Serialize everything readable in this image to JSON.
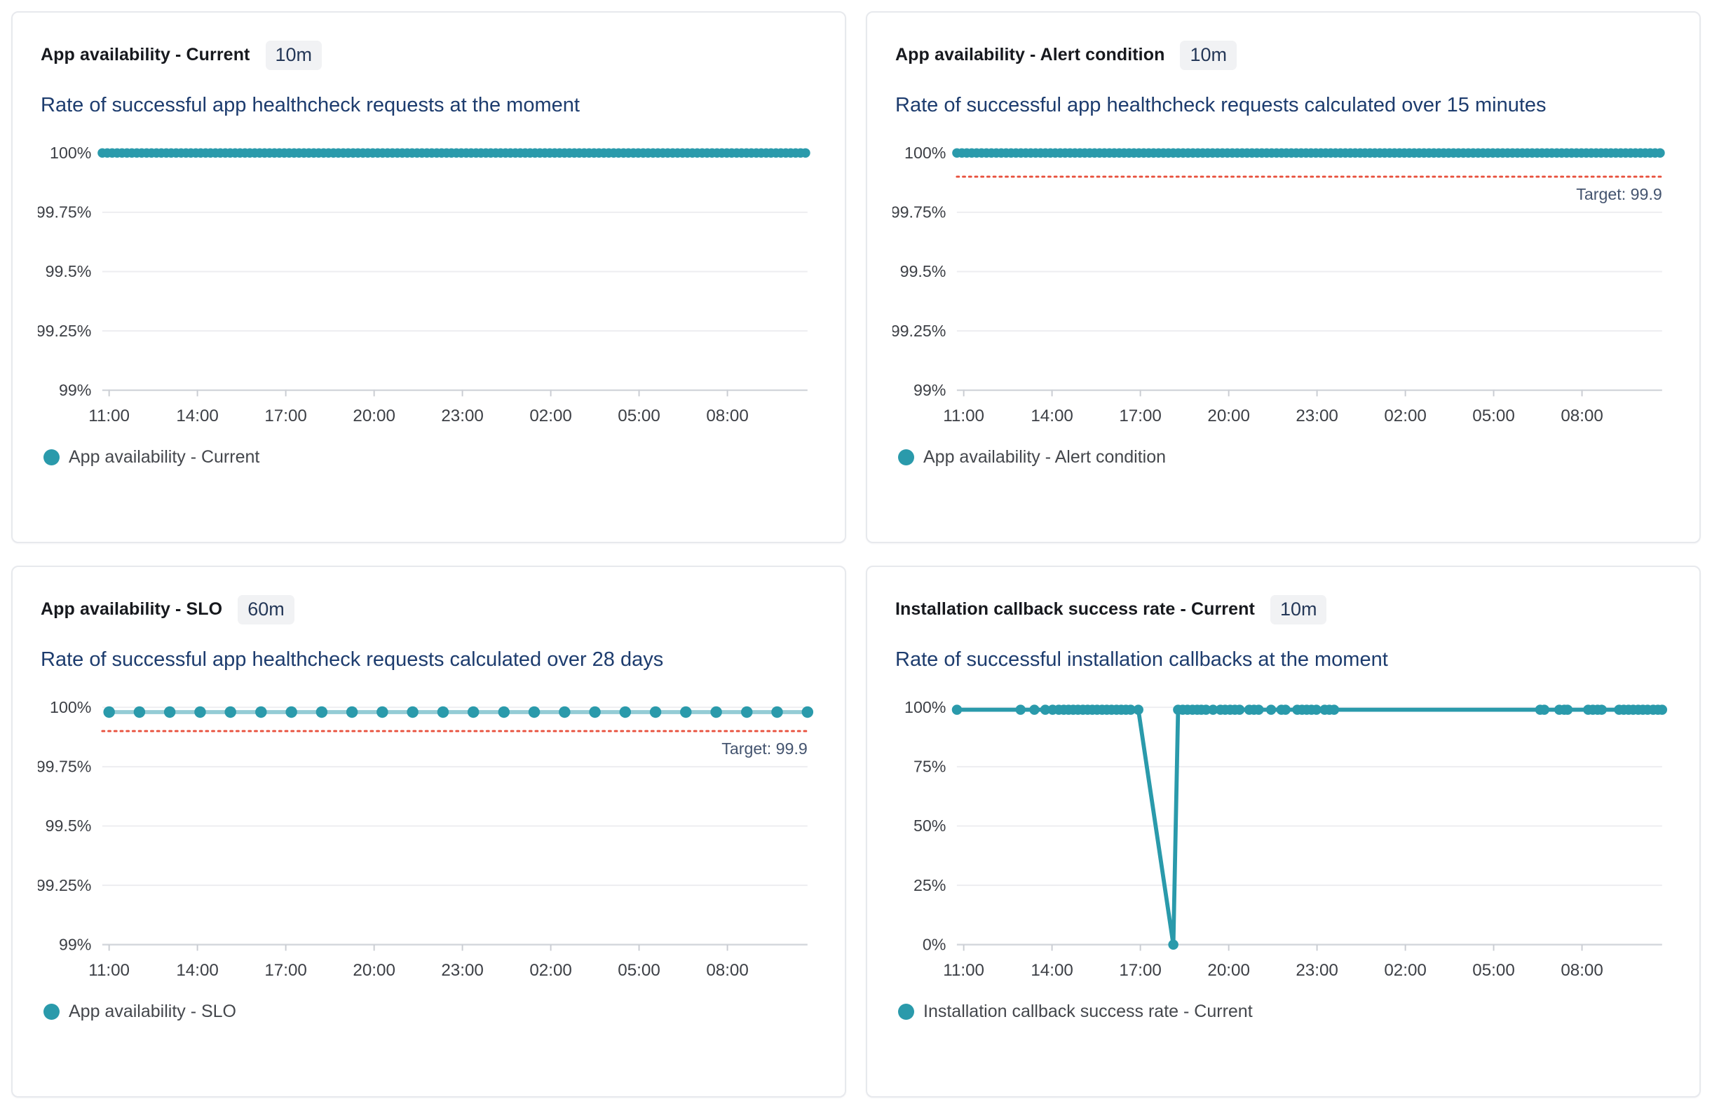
{
  "accent_color": "#2a9aab",
  "target_color": "#e8513e",
  "target_label_color": "#44546f",
  "axis_text_color": "#3c3f45",
  "grid_color": "#ededf0",
  "axis_line_color": "#d5d8dd",
  "tick_mark_color": "#c9ccd2",
  "charts": [
    {
      "title": "App availability - Current",
      "granularity": "10m",
      "subtitle": "Rate of successful app healthcheck requests at the moment",
      "legend": "App availability - Current",
      "chart_data": {
        "type": "line",
        "x_ticks": [
          "11:00",
          "14:00",
          "17:00",
          "20:00",
          "23:00",
          "02:00",
          "05:00",
          "08:00"
        ],
        "x_tick_hours": [
          11,
          14,
          17,
          20,
          23,
          26,
          29,
          32
        ],
        "y_min": 99,
        "y_max": 100,
        "y_ticks": [
          {
            "v": 100,
            "label": "100%"
          },
          {
            "v": 99.75,
            "label": "99.75%"
          },
          {
            "v": 99.5,
            "label": "99.5%"
          },
          {
            "v": 99.25,
            "label": "99.25%"
          },
          {
            "v": 99,
            "label": "99%"
          }
        ],
        "target": null,
        "series": {
          "name": "App availability - Current",
          "style": "dense",
          "x_start": 10.77,
          "x_end": 34.72,
          "x_step": 0.167,
          "y": 100
        }
      }
    },
    {
      "title": "App availability - Alert condition",
      "granularity": "10m",
      "subtitle": "Rate of successful app healthcheck requests calculated over 15 minutes",
      "legend": "App availability - Alert condition",
      "chart_data": {
        "type": "line",
        "x_ticks": [
          "11:00",
          "14:00",
          "17:00",
          "20:00",
          "23:00",
          "02:00",
          "05:00",
          "08:00"
        ],
        "x_tick_hours": [
          11,
          14,
          17,
          20,
          23,
          26,
          29,
          32
        ],
        "y_min": 99,
        "y_max": 100,
        "y_ticks": [
          {
            "v": 100,
            "label": "100%"
          },
          {
            "v": 99.75,
            "label": "99.75%"
          },
          {
            "v": 99.5,
            "label": "99.5%"
          },
          {
            "v": 99.25,
            "label": "99.25%"
          },
          {
            "v": 99,
            "label": "99%"
          }
        ],
        "target": {
          "value": 99.9,
          "label": "Target: 99.9"
        },
        "series": {
          "name": "App availability - Alert condition",
          "style": "dense",
          "x_start": 10.77,
          "x_end": 34.72,
          "x_step": 0.167,
          "y": 100
        }
      }
    },
    {
      "title": "App availability - SLO",
      "granularity": "60m",
      "subtitle": "Rate of successful app healthcheck requests calculated over 28 days",
      "legend": "App availability - SLO",
      "chart_data": {
        "type": "line",
        "x_ticks": [
          "11:00",
          "14:00",
          "17:00",
          "20:00",
          "23:00",
          "02:00",
          "05:00",
          "08:00"
        ],
        "x_tick_hours": [
          11,
          14,
          17,
          20,
          23,
          26,
          29,
          32
        ],
        "y_min": 99,
        "y_max": 100,
        "y_ticks": [
          {
            "v": 100,
            "label": "100%"
          },
          {
            "v": 99.75,
            "label": "99.75%"
          },
          {
            "v": 99.5,
            "label": "99.5%"
          },
          {
            "v": 99.25,
            "label": "99.25%"
          },
          {
            "v": 99,
            "label": "99%"
          }
        ],
        "target": {
          "value": 99.9,
          "label": "Target: 99.9"
        },
        "series": {
          "name": "App availability - SLO",
          "style": "dots",
          "points": [
            [
              11.0,
              99.98
            ],
            [
              12.03,
              99.98
            ],
            [
              13.06,
              99.98
            ],
            [
              14.09,
              99.98
            ],
            [
              15.12,
              99.98
            ],
            [
              16.16,
              99.98
            ],
            [
              17.19,
              99.98
            ],
            [
              18.22,
              99.98
            ],
            [
              19.25,
              99.98
            ],
            [
              20.28,
              99.98
            ],
            [
              21.31,
              99.98
            ],
            [
              22.34,
              99.98
            ],
            [
              23.37,
              99.98
            ],
            [
              24.41,
              99.98
            ],
            [
              25.44,
              99.98
            ],
            [
              26.47,
              99.98
            ],
            [
              27.5,
              99.98
            ],
            [
              28.53,
              99.98
            ],
            [
              29.56,
              99.98
            ],
            [
              30.59,
              99.98
            ],
            [
              31.62,
              99.98
            ],
            [
              32.66,
              99.98
            ],
            [
              33.69,
              99.98
            ],
            [
              34.72,
              99.98
            ]
          ]
        }
      }
    },
    {
      "title": "Installation callback success rate - Current",
      "granularity": "10m",
      "subtitle": "Rate of successful installation callbacks at the moment",
      "legend": "Installation callback success rate - Current",
      "chart_data": {
        "type": "line",
        "x_ticks": [
          "11:00",
          "14:00",
          "17:00",
          "20:00",
          "23:00",
          "02:00",
          "05:00",
          "08:00"
        ],
        "x_tick_hours": [
          11,
          14,
          17,
          20,
          23,
          26,
          29,
          32
        ],
        "y_min": 0,
        "y_max": 100,
        "y_ticks": [
          {
            "v": 100,
            "label": "100%"
          },
          {
            "v": 75,
            "label": "75%"
          },
          {
            "v": 50,
            "label": "50%"
          },
          {
            "v": 25,
            "label": "25%"
          },
          {
            "v": 0,
            "label": "0%"
          }
        ],
        "target": null,
        "series": {
          "name": "Installation callback success rate - Current",
          "style": "line",
          "points": [
            [
              10.77,
              99
            ],
            [
              12.93,
              99
            ],
            [
              13.4,
              99
            ],
            [
              13.77,
              99
            ],
            [
              14.02,
              99
            ],
            [
              14.23,
              99
            ],
            [
              14.4,
              99
            ],
            [
              14.56,
              99
            ],
            [
              14.72,
              99
            ],
            [
              14.88,
              99
            ],
            [
              15.05,
              99
            ],
            [
              15.21,
              99
            ],
            [
              15.37,
              99
            ],
            [
              15.53,
              99
            ],
            [
              15.7,
              99
            ],
            [
              15.86,
              99
            ],
            [
              16.02,
              99
            ],
            [
              16.19,
              99
            ],
            [
              16.35,
              99
            ],
            [
              16.51,
              99
            ],
            [
              16.67,
              99
            ],
            [
              16.93,
              99
            ],
            [
              18.12,
              0
            ],
            [
              18.28,
              99
            ],
            [
              18.44,
              99
            ],
            [
              18.6,
              99
            ],
            [
              18.77,
              99
            ],
            [
              18.93,
              99
            ],
            [
              19.07,
              99
            ],
            [
              19.23,
              99
            ],
            [
              19.47,
              99
            ],
            [
              19.72,
              99
            ],
            [
              19.88,
              99
            ],
            [
              20.05,
              99
            ],
            [
              20.21,
              99
            ],
            [
              20.37,
              99
            ],
            [
              20.7,
              99
            ],
            [
              20.86,
              99
            ],
            [
              21.02,
              99
            ],
            [
              21.44,
              99
            ],
            [
              21.79,
              99
            ],
            [
              21.93,
              99
            ],
            [
              22.33,
              99
            ],
            [
              22.49,
              99
            ],
            [
              22.65,
              99
            ],
            [
              22.81,
              99
            ],
            [
              22.98,
              99
            ],
            [
              23.26,
              99
            ],
            [
              23.42,
              99
            ],
            [
              23.58,
              99
            ],
            [
              30.58,
              99
            ],
            [
              30.72,
              99
            ],
            [
              31.23,
              99
            ],
            [
              31.4,
              99
            ],
            [
              31.51,
              99
            ],
            [
              32.21,
              99
            ],
            [
              32.37,
              99
            ],
            [
              32.53,
              99
            ],
            [
              32.67,
              99
            ],
            [
              33.26,
              99
            ],
            [
              33.42,
              99
            ],
            [
              33.58,
              99
            ],
            [
              33.74,
              99
            ],
            [
              33.91,
              99
            ],
            [
              34.07,
              99
            ],
            [
              34.23,
              99
            ],
            [
              34.42,
              99
            ],
            [
              34.58,
              99
            ],
            [
              34.72,
              99
            ]
          ]
        }
      }
    }
  ]
}
